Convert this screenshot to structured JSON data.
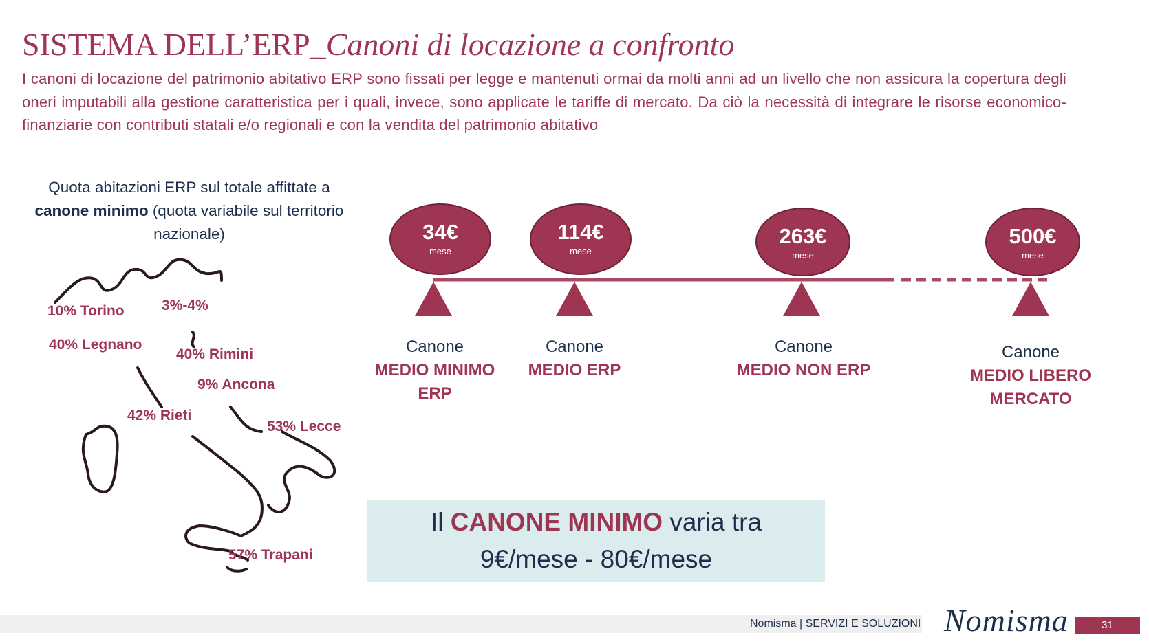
{
  "title": {
    "main": "SISTEMA DELL’ERP_",
    "italic": "Canoni di locazione a confronto"
  },
  "intro": "I canoni di locazione del patrimonio abitativo ERP sono fissati per legge e mantenuti ormai da molti anni ad un livello che non assicura la copertura degli oneri imputabili alla gestione caratteristica per i quali, invece, sono applicate le tariffe di mercato. Da ciò la necessità di integrare le risorse economico-finanziarie con contributi statali e/o regionali e con la vendita del patrimonio abitativo",
  "map": {
    "caption_pre": "Quota abitazioni ERP sul totale affittate a ",
    "caption_bold": "canone minimo",
    "caption_post": " (quota variabile sul territorio nazionale)",
    "cities": [
      {
        "label": "10% Torino"
      },
      {
        "label": "3%-4%"
      },
      {
        "label": "40% Legnano"
      },
      {
        "label": "40% Rimini"
      },
      {
        "label": "9% Ancona"
      },
      {
        "label": "42% Rieti"
      },
      {
        "label": "53% Lecce"
      },
      {
        "label": "57% Trapani"
      }
    ]
  },
  "timeline": {
    "items": [
      {
        "value": "34€",
        "unit": "mese",
        "label_top": "Canone",
        "label_strong": "MEDIO MINIMO ERP"
      },
      {
        "value": "114€",
        "unit": "mese",
        "label_top": "Canone",
        "label_strong": "MEDIO ERP"
      },
      {
        "value": "263€",
        "unit": "mese",
        "label_top": "Canone",
        "label_strong": "MEDIO NON ERP"
      },
      {
        "value": "500€",
        "unit": "mese",
        "label_top": "Canone",
        "label_strong": "MEDIO LIBERO MERCATO"
      }
    ],
    "colors": {
      "accent": "#9e3653",
      "line": "#a94a66"
    }
  },
  "range_box": {
    "pre": "Il ",
    "highlight": "CANONE MINIMO",
    "post": " varia tra",
    "range": "9€/mese - 80€/mese"
  },
  "footer": {
    "text": "Nomisma | SERVIZI E SOLUZIONI",
    "brand": "Nomisma",
    "page": "31"
  },
  "colors": {
    "primary": "#9e3653",
    "navy": "#1e2f4d",
    "box_bg": "#dbecee"
  }
}
